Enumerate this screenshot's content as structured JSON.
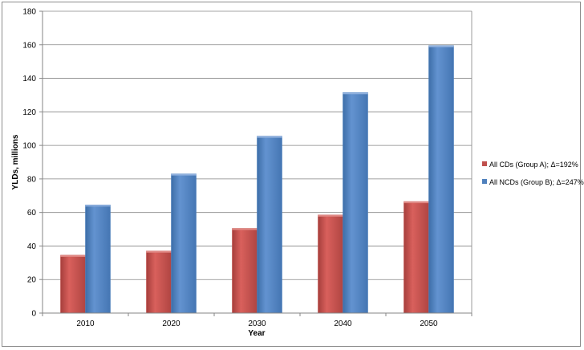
{
  "chart_data": {
    "type": "bar",
    "categories": [
      "2010",
      "2020",
      "2030",
      "2040",
      "2050"
    ],
    "series": [
      {
        "name": "All CDs (Group A); Δ=192%",
        "values": [
          34.5,
          37,
          50.5,
          58.5,
          66.5
        ],
        "color": "#c0504d"
      },
      {
        "name": "All NCDs (Group B); Δ=247%",
        "values": [
          64.5,
          83,
          105.5,
          131.5,
          159.5
        ],
        "color": "#4f81bd"
      }
    ],
    "xlabel": "Year",
    "ylabel": "YLDs, millions",
    "ylim": [
      0,
      180
    ],
    "yticks": [
      "0",
      "20",
      "40",
      "60",
      "80",
      "100",
      "120",
      "140",
      "160",
      "180"
    ],
    "grid": true,
    "legend_position": "right"
  }
}
